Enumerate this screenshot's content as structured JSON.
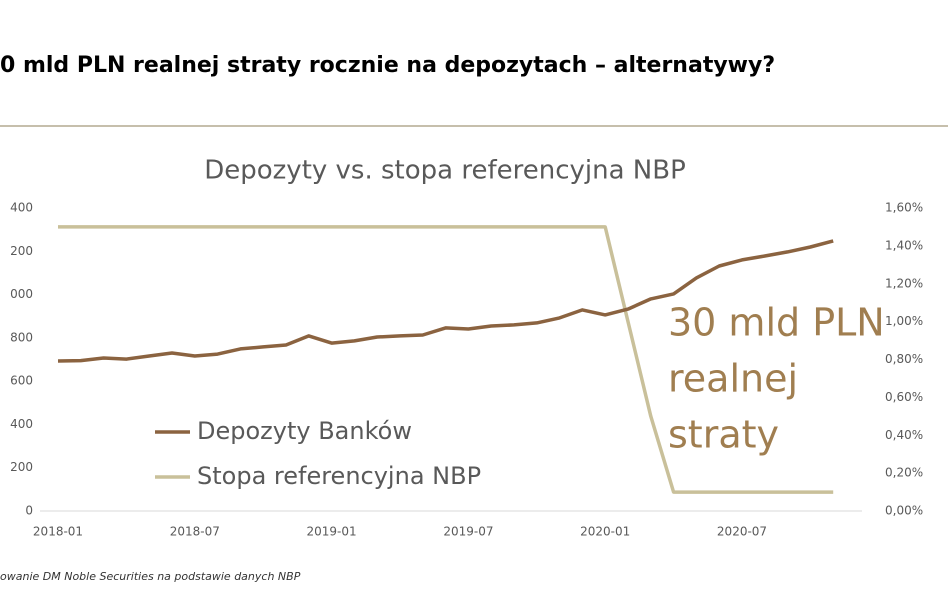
{
  "header": {
    "title": "0 mld PLN realnej straty rocznie na depozytach – alternatywy?"
  },
  "footnote": "owanie DM Noble Securities na podstawie danych NBP",
  "chart_data": {
    "type": "line",
    "title": "Depozyty vs. stopa referencyjna NBP",
    "categories": [
      "2018-01",
      null,
      null,
      null,
      null,
      null,
      "2018-07",
      null,
      null,
      null,
      null,
      null,
      "2019-01",
      null,
      null,
      null,
      null,
      null,
      "2019-07",
      null,
      null,
      null,
      null,
      null,
      "2020-01",
      null,
      null,
      null,
      null,
      null,
      "2020-07",
      null,
      null,
      null,
      null
    ],
    "series": [
      {
        "name": "Depozyty Banków",
        "color": "#8b6340",
        "axis": "y",
        "values": [
          693,
          695,
          707,
          702,
          716,
          730,
          716,
          725,
          749,
          758,
          767,
          809,
          776,
          786,
          804,
          809,
          813,
          846,
          841,
          855,
          860,
          869,
          892,
          929,
          906,
          933,
          980,
          1003,
          1077,
          1132,
          1160,
          1178,
          1197,
          1220,
          1248
        ]
      },
      {
        "name": "Stopa referencyjna NBP",
        "color": "#c9c09a",
        "axis": "y2",
        "values": [
          1.5,
          1.5,
          1.5,
          1.5,
          1.5,
          1.5,
          1.5,
          1.5,
          1.5,
          1.5,
          1.5,
          1.5,
          1.5,
          1.5,
          1.5,
          1.5,
          1.5,
          1.5,
          1.5,
          1.5,
          1.5,
          1.5,
          1.5,
          1.5,
          1.5,
          1.0,
          0.5,
          0.1,
          0.1,
          0.1,
          0.1,
          0.1,
          0.1,
          0.1,
          0.1
        ]
      }
    ],
    "ylim": [
      0,
      1400
    ],
    "yticks": [
      0,
      {
        "value": 200,
        "label": "200"
      },
      {
        "value": 400,
        "label": "400"
      },
      {
        "value": 600,
        "label": "600"
      },
      {
        "value": 800,
        "label": "800"
      },
      {
        "value": 1000,
        "label": "000"
      },
      {
        "value": 1200,
        "label": "200"
      },
      {
        "value": 1400,
        "label": "400"
      }
    ],
    "y2lim": [
      0,
      1.6
    ],
    "y2ticks": [
      {
        "value": 0,
        "label": "0,00%"
      },
      {
        "value": 0.2,
        "label": "0,20%"
      },
      {
        "value": 0.4,
        "label": "0,40%"
      },
      {
        "value": 0.6,
        "label": "0,60%"
      },
      {
        "value": 0.8,
        "label": "0,80%"
      },
      {
        "value": 1.0,
        "label": "1,00%"
      },
      {
        "value": 1.2,
        "label": "1,20%"
      },
      {
        "value": 1.4,
        "label": "1,40%"
      },
      {
        "value": 1.6,
        "label": "1,60%"
      }
    ],
    "annotations": [
      "30 mld PLN",
      "realnej",
      "straty"
    ],
    "annotation_color": "#a07e50",
    "grid": false
  }
}
